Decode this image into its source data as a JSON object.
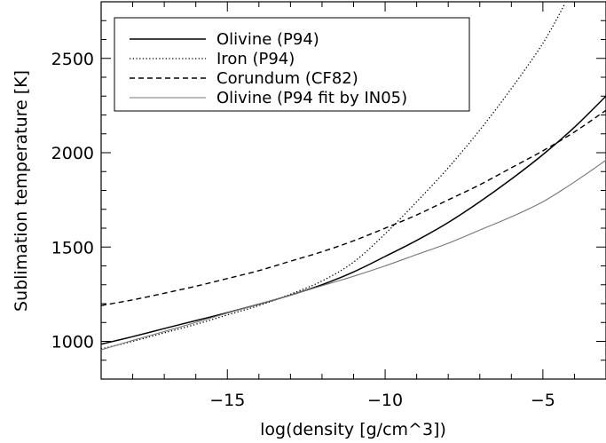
{
  "chart_data": {
    "type": "line",
    "title": "",
    "xlabel": "log(density [g/cm^3])",
    "ylabel": "Sublimation temperature [K]",
    "xlim": [
      -19,
      -3
    ],
    "ylim": [
      800,
      2800
    ],
    "x_ticks": [
      {
        "value": -15,
        "label": "−15"
      },
      {
        "value": -10,
        "label": "−10"
      },
      {
        "value": -5,
        "label": "−5"
      }
    ],
    "y_ticks": [
      {
        "value": 1000,
        "label": "1000"
      },
      {
        "value": 1500,
        "label": "1500"
      },
      {
        "value": 2000,
        "label": "2000"
      },
      {
        "value": 2500,
        "label": "2500"
      }
    ],
    "x_minor_step": 1,
    "y_minor_step": 100,
    "legend_position": "top-left",
    "grid": false,
    "series": [
      {
        "name": "Olivine (P94)",
        "style": "solid",
        "color": "#000000",
        "x": [
          -19,
          -18,
          -17,
          -16,
          -15,
          -14,
          -13,
          -12,
          -11,
          -10,
          -9,
          -8,
          -7,
          -6,
          -5,
          -4,
          -3
        ],
        "y": [
          985,
          1025,
          1068,
          1110,
          1152,
          1197,
          1245,
          1300,
          1368,
          1450,
          1535,
          1630,
          1740,
          1860,
          1990,
          2135,
          2300
        ]
      },
      {
        "name": "Iron (P94)",
        "style": "dotted",
        "color": "#000000",
        "x": [
          -19,
          -18,
          -17,
          -16,
          -15,
          -14,
          -13,
          -12,
          -11,
          -10,
          -9,
          -8,
          -7,
          -6,
          -5,
          -4.3
        ],
        "y": [
          960,
          1000,
          1045,
          1090,
          1140,
          1190,
          1250,
          1320,
          1420,
          1570,
          1740,
          1920,
          2120,
          2340,
          2580,
          2790
        ]
      },
      {
        "name": "Corundum (CF82)",
        "style": "dashed",
        "color": "#000000",
        "x": [
          -19,
          -18,
          -17,
          -16,
          -15,
          -14,
          -13,
          -12,
          -11,
          -10,
          -9,
          -8,
          -7,
          -6,
          -5,
          -4,
          -3
        ],
        "y": [
          1190,
          1220,
          1255,
          1292,
          1333,
          1375,
          1425,
          1475,
          1533,
          1600,
          1670,
          1750,
          1830,
          1920,
          2010,
          2110,
          2225
        ]
      },
      {
        "name": "Olivine (P94 fit by IN05)",
        "style": "solid-thin",
        "color": "#777777",
        "x": [
          -19,
          -18,
          -17,
          -16,
          -15,
          -14,
          -13,
          -12,
          -11,
          -10,
          -9,
          -8,
          -7,
          -6,
          -5,
          -4,
          -3
        ],
        "y": [
          955,
          1005,
          1052,
          1100,
          1150,
          1198,
          1245,
          1295,
          1345,
          1400,
          1460,
          1520,
          1590,
          1660,
          1740,
          1845,
          1960
        ]
      }
    ]
  }
}
